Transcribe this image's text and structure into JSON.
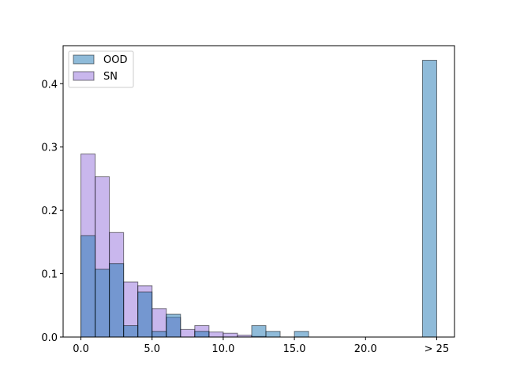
{
  "chart_data": {
    "type": "bar",
    "bin_width": 1,
    "x_tick_labels": [
      "0.0",
      "5.0",
      "10.0",
      "15.0",
      "20.0",
      "> 25"
    ],
    "x_tick_values": [
      0,
      5,
      10,
      15,
      20,
      25
    ],
    "y_tick_labels": [
      "0.0",
      "0.1",
      "0.2",
      "0.3",
      "0.4"
    ],
    "y_tick_values": [
      0,
      0.1,
      0.2,
      0.3,
      0.4
    ],
    "xlim": [
      -1.25,
      26.25
    ],
    "ylim": [
      0,
      0.46
    ],
    "grid": false,
    "legend_position": "upper-left",
    "series": [
      {
        "name": "SN",
        "color": "#9370DB",
        "alpha": 0.5,
        "bins": [
          {
            "x": 0,
            "y": 0.289
          },
          {
            "x": 1,
            "y": 0.253
          },
          {
            "x": 2,
            "y": 0.165
          },
          {
            "x": 3,
            "y": 0.087
          },
          {
            "x": 4,
            "y": 0.081
          },
          {
            "x": 5,
            "y": 0.045
          },
          {
            "x": 6,
            "y": 0.031
          },
          {
            "x": 7,
            "y": 0.012
          },
          {
            "x": 8,
            "y": 0.018
          },
          {
            "x": 9,
            "y": 0.008
          },
          {
            "x": 10,
            "y": 0.006
          },
          {
            "x": 11,
            "y": 0.003
          },
          {
            "x": 12,
            "y": 0.001
          }
        ]
      },
      {
        "name": "OOD",
        "color": "#1f77b4",
        "alpha": 0.5,
        "bins": [
          {
            "x": 0,
            "y": 0.16
          },
          {
            "x": 1,
            "y": 0.107
          },
          {
            "x": 2,
            "y": 0.116
          },
          {
            "x": 3,
            "y": 0.018
          },
          {
            "x": 4,
            "y": 0.071
          },
          {
            "x": 5,
            "y": 0.009
          },
          {
            "x": 6,
            "y": 0.036
          },
          {
            "x": 7,
            "y": 0.0
          },
          {
            "x": 8,
            "y": 0.009
          },
          {
            "x": 9,
            "y": 0.0
          },
          {
            "x": 10,
            "y": 0.0
          },
          {
            "x": 11,
            "y": 0.0
          },
          {
            "x": 12,
            "y": 0.018
          },
          {
            "x": 13,
            "y": 0.009
          },
          {
            "x": 14,
            "y": 0.0
          },
          {
            "x": 15,
            "y": 0.009
          },
          {
            "x": 24,
            "y": 0.437
          }
        ]
      }
    ],
    "legend": [
      {
        "label": "OOD",
        "color": "#1f77b4"
      },
      {
        "label": "SN",
        "color": "#9370DB"
      }
    ]
  }
}
